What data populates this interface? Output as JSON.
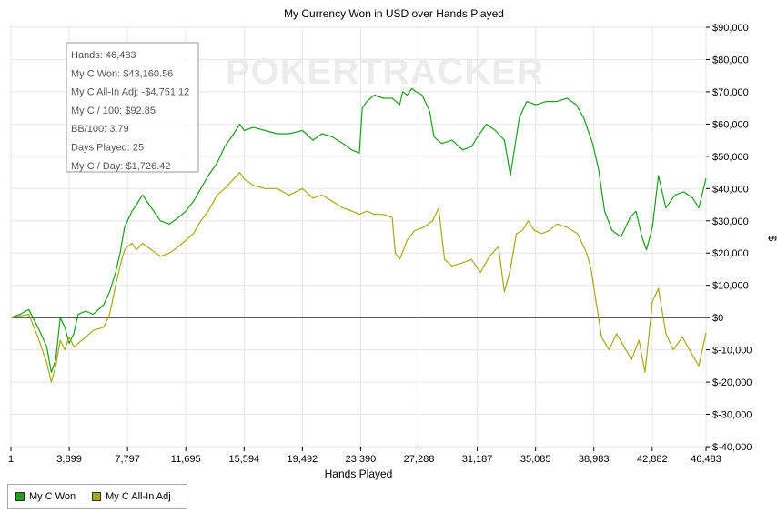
{
  "colors": {
    "won": "#1e9c1e",
    "allin": "#a8a818",
    "zero_line": "#000000",
    "grid": "#e6e6e6"
  },
  "watermark": "POKERTRACKER",
  "stats": [
    "Hands: 46,483",
    "My C Won: $43,160.56",
    "My C All-In Adj: -$4,751.12",
    "My C / 100: $92.85",
    "BB/100: 3.79",
    "Days Played: 25",
    "My C / Day: $1,726.42"
  ],
  "chart_data": {
    "type": "line",
    "title": "My Currency Won in USD over Hands Played",
    "xlabel": "Hands Played",
    "ylabel": "$",
    "xlim": [
      1,
      46483
    ],
    "ylim": [
      -40000,
      90000
    ],
    "x_ticks": [
      1,
      3899,
      7797,
      11695,
      15594,
      19492,
      23390,
      27288,
      31187,
      35085,
      38983,
      42882,
      46483
    ],
    "x_tick_labels": [
      "1",
      "3,899",
      "7,797",
      "11,695",
      "15,594",
      "19,492",
      "23,390",
      "27,288",
      "31,187",
      "35,085",
      "38,983",
      "42,882",
      "46,483"
    ],
    "y_ticks": [
      -40000,
      -30000,
      -20000,
      -10000,
      0,
      10000,
      20000,
      30000,
      40000,
      50000,
      60000,
      70000,
      80000,
      90000
    ],
    "y_tick_labels": [
      "$-40,000",
      "$-30,000",
      "$-20,000",
      "$-10,000",
      "$0",
      "$10,000",
      "$20,000",
      "$30,000",
      "$40,000",
      "$50,000",
      "$60,000",
      "$70,000",
      "$80,000",
      "$90,000"
    ],
    "legend_position": "bottom-left",
    "grid": true,
    "series": [
      {
        "name": "My C Won",
        "x": [
          1,
          600,
          1200,
          1800,
          2400,
          2700,
          3000,
          3300,
          3600,
          3900,
          4200,
          4500,
          5000,
          5500,
          6200,
          6600,
          7000,
          7300,
          7600,
          7800,
          8100,
          8400,
          8800,
          9400,
          10000,
          10600,
          11200,
          11700,
          12200,
          12700,
          13200,
          13800,
          14300,
          14900,
          15300,
          15600,
          16200,
          17000,
          17800,
          18600,
          19500,
          20200,
          20800,
          21500,
          22200,
          22800,
          23300,
          23500,
          23800,
          24300,
          24900,
          25500,
          26000,
          26200,
          26500,
          26800,
          27100,
          27500,
          28000,
          28300,
          28800,
          29500,
          30200,
          30800,
          31200,
          31800,
          32400,
          33000,
          33400,
          33600,
          34000,
          34500,
          35100,
          35800,
          36500,
          37200,
          37800,
          38300,
          38600,
          38900,
          39300,
          39700,
          40200,
          40800,
          41400,
          41800,
          42200,
          42500,
          42900,
          43300,
          43800,
          44400,
          45000,
          45600,
          46000,
          46483
        ],
        "values": [
          0,
          1000,
          2500,
          -3000,
          -9000,
          -17000,
          -13000,
          0,
          -3000,
          -8000,
          -5000,
          1000,
          2000,
          1000,
          4000,
          8000,
          14000,
          20000,
          28000,
          30000,
          33000,
          35000,
          38000,
          34000,
          30000,
          29000,
          31000,
          33000,
          36000,
          40000,
          44000,
          48000,
          53000,
          57000,
          60000,
          58000,
          59000,
          58000,
          57000,
          57000,
          58000,
          55000,
          57000,
          56000,
          54000,
          52000,
          51000,
          65000,
          67000,
          69000,
          68000,
          68000,
          66000,
          70000,
          69000,
          71000,
          70000,
          69000,
          64000,
          56000,
          54000,
          55000,
          52000,
          53000,
          56000,
          60000,
          58000,
          55000,
          44000,
          50000,
          62000,
          67000,
          66000,
          67000,
          67000,
          68000,
          66000,
          62000,
          58000,
          54000,
          46000,
          33000,
          27000,
          25000,
          31000,
          33000,
          25000,
          21000,
          28000,
          44000,
          34000,
          38000,
          39000,
          37000,
          34000,
          43160
        ]
      },
      {
        "name": "My C All-In Adj",
        "x": [
          1,
          600,
          1200,
          1800,
          2400,
          2700,
          3000,
          3300,
          3600,
          3900,
          4200,
          4500,
          5000,
          5500,
          6200,
          6600,
          7000,
          7300,
          7600,
          7800,
          8100,
          8400,
          8800,
          9400,
          10000,
          10600,
          11200,
          11700,
          12200,
          12700,
          13200,
          13800,
          14300,
          14900,
          15300,
          15600,
          16200,
          17000,
          17800,
          18600,
          19500,
          20200,
          20800,
          21500,
          22200,
          22800,
          23300,
          23800,
          24300,
          24900,
          25500,
          25700,
          26000,
          26500,
          27000,
          27600,
          28200,
          28600,
          29000,
          29500,
          30200,
          30800,
          31400,
          32000,
          32600,
          33000,
          33400,
          33800,
          34200,
          34600,
          35000,
          35500,
          36000,
          36500,
          37200,
          37900,
          38500,
          38800,
          39100,
          39500,
          40000,
          40500,
          41000,
          41500,
          42000,
          42400,
          42900,
          43300,
          43800,
          44300,
          44900,
          45500,
          46000,
          46483
        ],
        "values": [
          0,
          500,
          1000,
          -6000,
          -14000,
          -20000,
          -15000,
          -7000,
          -10000,
          -6000,
          -9000,
          -8000,
          -6000,
          -4000,
          -3000,
          1000,
          10000,
          16000,
          21000,
          22000,
          23000,
          21000,
          23000,
          21000,
          19000,
          20000,
          22000,
          24000,
          26000,
          30000,
          33000,
          38000,
          40000,
          43000,
          45000,
          43000,
          41000,
          40000,
          40000,
          38000,
          40000,
          37000,
          38000,
          36000,
          34000,
          33000,
          32000,
          33000,
          32000,
          32000,
          31000,
          20000,
          18000,
          24000,
          27000,
          28000,
          30000,
          34000,
          18000,
          16000,
          17000,
          18000,
          14000,
          19000,
          22000,
          8000,
          15000,
          26000,
          27000,
          30000,
          27000,
          26000,
          27000,
          29000,
          28000,
          26000,
          20000,
          15000,
          6000,
          -6000,
          -10000,
          -5000,
          -9000,
          -13000,
          -7000,
          -17000,
          5000,
          9000,
          -5000,
          -10000,
          -6000,
          -11000,
          -15000,
          -4751
        ]
      }
    ]
  },
  "legend": {
    "items": [
      {
        "label": "My C Won"
      },
      {
        "label": "My C All-In Adj"
      }
    ]
  }
}
